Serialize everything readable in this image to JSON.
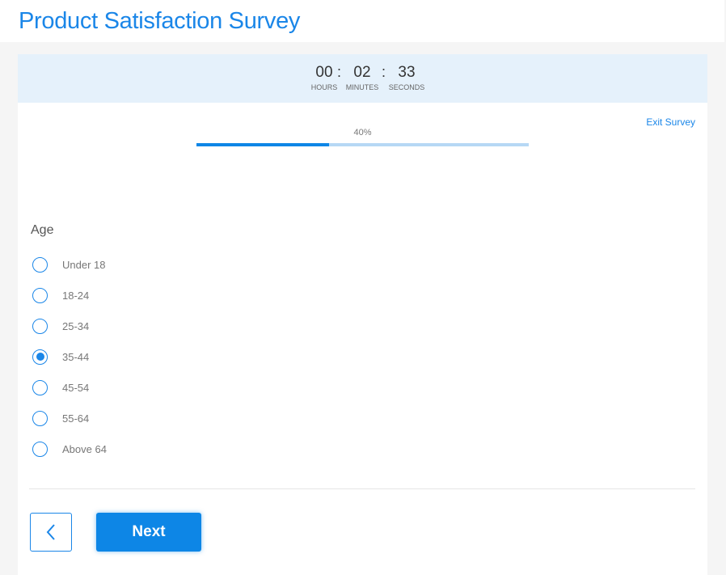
{
  "header": {
    "title": "Product Satisfaction Survey"
  },
  "timer": {
    "hours": "00",
    "minutes": "02",
    "seconds": "33",
    "hours_label": "HOURS",
    "minutes_label": "MINUTES",
    "seconds_label": "SECONDS",
    "separator": ":"
  },
  "exit_label": "Exit Survey",
  "progress": {
    "label": "40%",
    "value": 40
  },
  "question": {
    "label": "Age",
    "options": [
      "Under 18",
      "18-24",
      "25-34",
      "35-44",
      "45-54",
      "55-64",
      "Above 64"
    ],
    "selected": "35-44"
  },
  "nav": {
    "next_label": "Next",
    "back_icon": "chevron-left-icon"
  },
  "colors": {
    "accent": "#1a86e8",
    "timer_bg": "#e5f1fb"
  }
}
